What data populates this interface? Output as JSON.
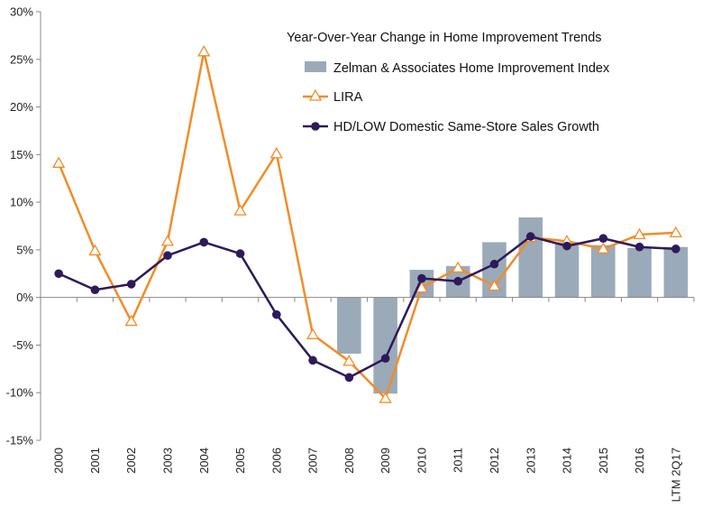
{
  "chart_data": {
    "type": "bar+line",
    "title": "Year-Over-Year Change in Home Improvement Trends",
    "categories": [
      "2000",
      "2001",
      "2002",
      "2003",
      "2004",
      "2005",
      "2006",
      "2007",
      "2008",
      "2009",
      "2010",
      "2011",
      "2012",
      "2013",
      "2014",
      "2015",
      "2016",
      "LTM 2Q17"
    ],
    "ylim": [
      -15,
      30
    ],
    "ytick_step": 5,
    "ytick_suffix": "%",
    "grid": false,
    "legend_position": "top-right",
    "series": [
      {
        "name": "Zelman & Associates Home Improvement Index",
        "kind": "bar",
        "color": "#9aaab9",
        "values": [
          null,
          null,
          null,
          null,
          null,
          null,
          null,
          null,
          -5.9,
          -10.1,
          2.9,
          3.3,
          5.8,
          8.4,
          5.8,
          5.5,
          5.2,
          5.3
        ]
      },
      {
        "name": "LIRA",
        "kind": "line",
        "marker": "triangle-open",
        "color": "#f28c28",
        "values": [
          14.1,
          4.9,
          -2.5,
          5.9,
          25.8,
          9.1,
          15.1,
          -3.9,
          -6.7,
          -10.6,
          1.0,
          3.1,
          1.2,
          6.3,
          5.9,
          5.1,
          6.6,
          6.8
        ]
      },
      {
        "name": "HD/LOW Domestic Same-Store Sales Growth",
        "kind": "line",
        "marker": "circle-filled",
        "color": "#2e1a5a",
        "values": [
          2.5,
          0.8,
          1.4,
          4.4,
          5.8,
          4.6,
          -1.8,
          -6.6,
          -8.4,
          -6.4,
          2.0,
          1.7,
          3.5,
          6.4,
          5.4,
          6.2,
          5.3,
          5.1
        ]
      }
    ]
  }
}
